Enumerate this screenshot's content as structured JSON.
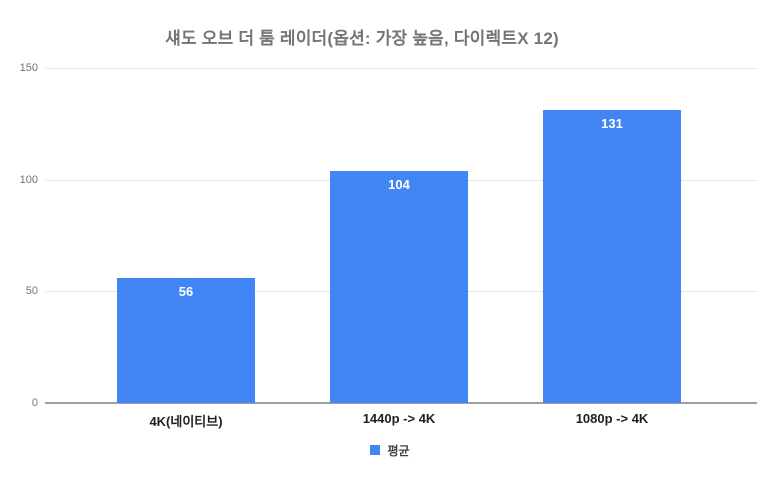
{
  "chart_data": {
    "type": "bar",
    "title": "섀도 오브 더 툼 레이더(옵션: 가장 높음, 다이렉트X 12)",
    "categories": [
      "4K(네이티브)",
      "1440p -> 4K",
      "1080p -> 4K"
    ],
    "series": [
      {
        "name": "평균",
        "values": [
          56,
          104,
          131
        ]
      }
    ],
    "xlabel": "",
    "ylabel": "",
    "ylim": [
      0,
      150
    ],
    "yticks": [
      0,
      50,
      100,
      150
    ],
    "grid": true,
    "legend_position": "bottom",
    "bar_color": "#4285f4",
    "colors": {
      "title_text": "#757575",
      "axis_tick_text": "#757575",
      "category_text": "#1f1f1f",
      "value_label_text": "#ffffff",
      "gridline": "#e6e6e6",
      "axis_line": "#9e9e9e",
      "background": "#ffffff"
    }
  }
}
